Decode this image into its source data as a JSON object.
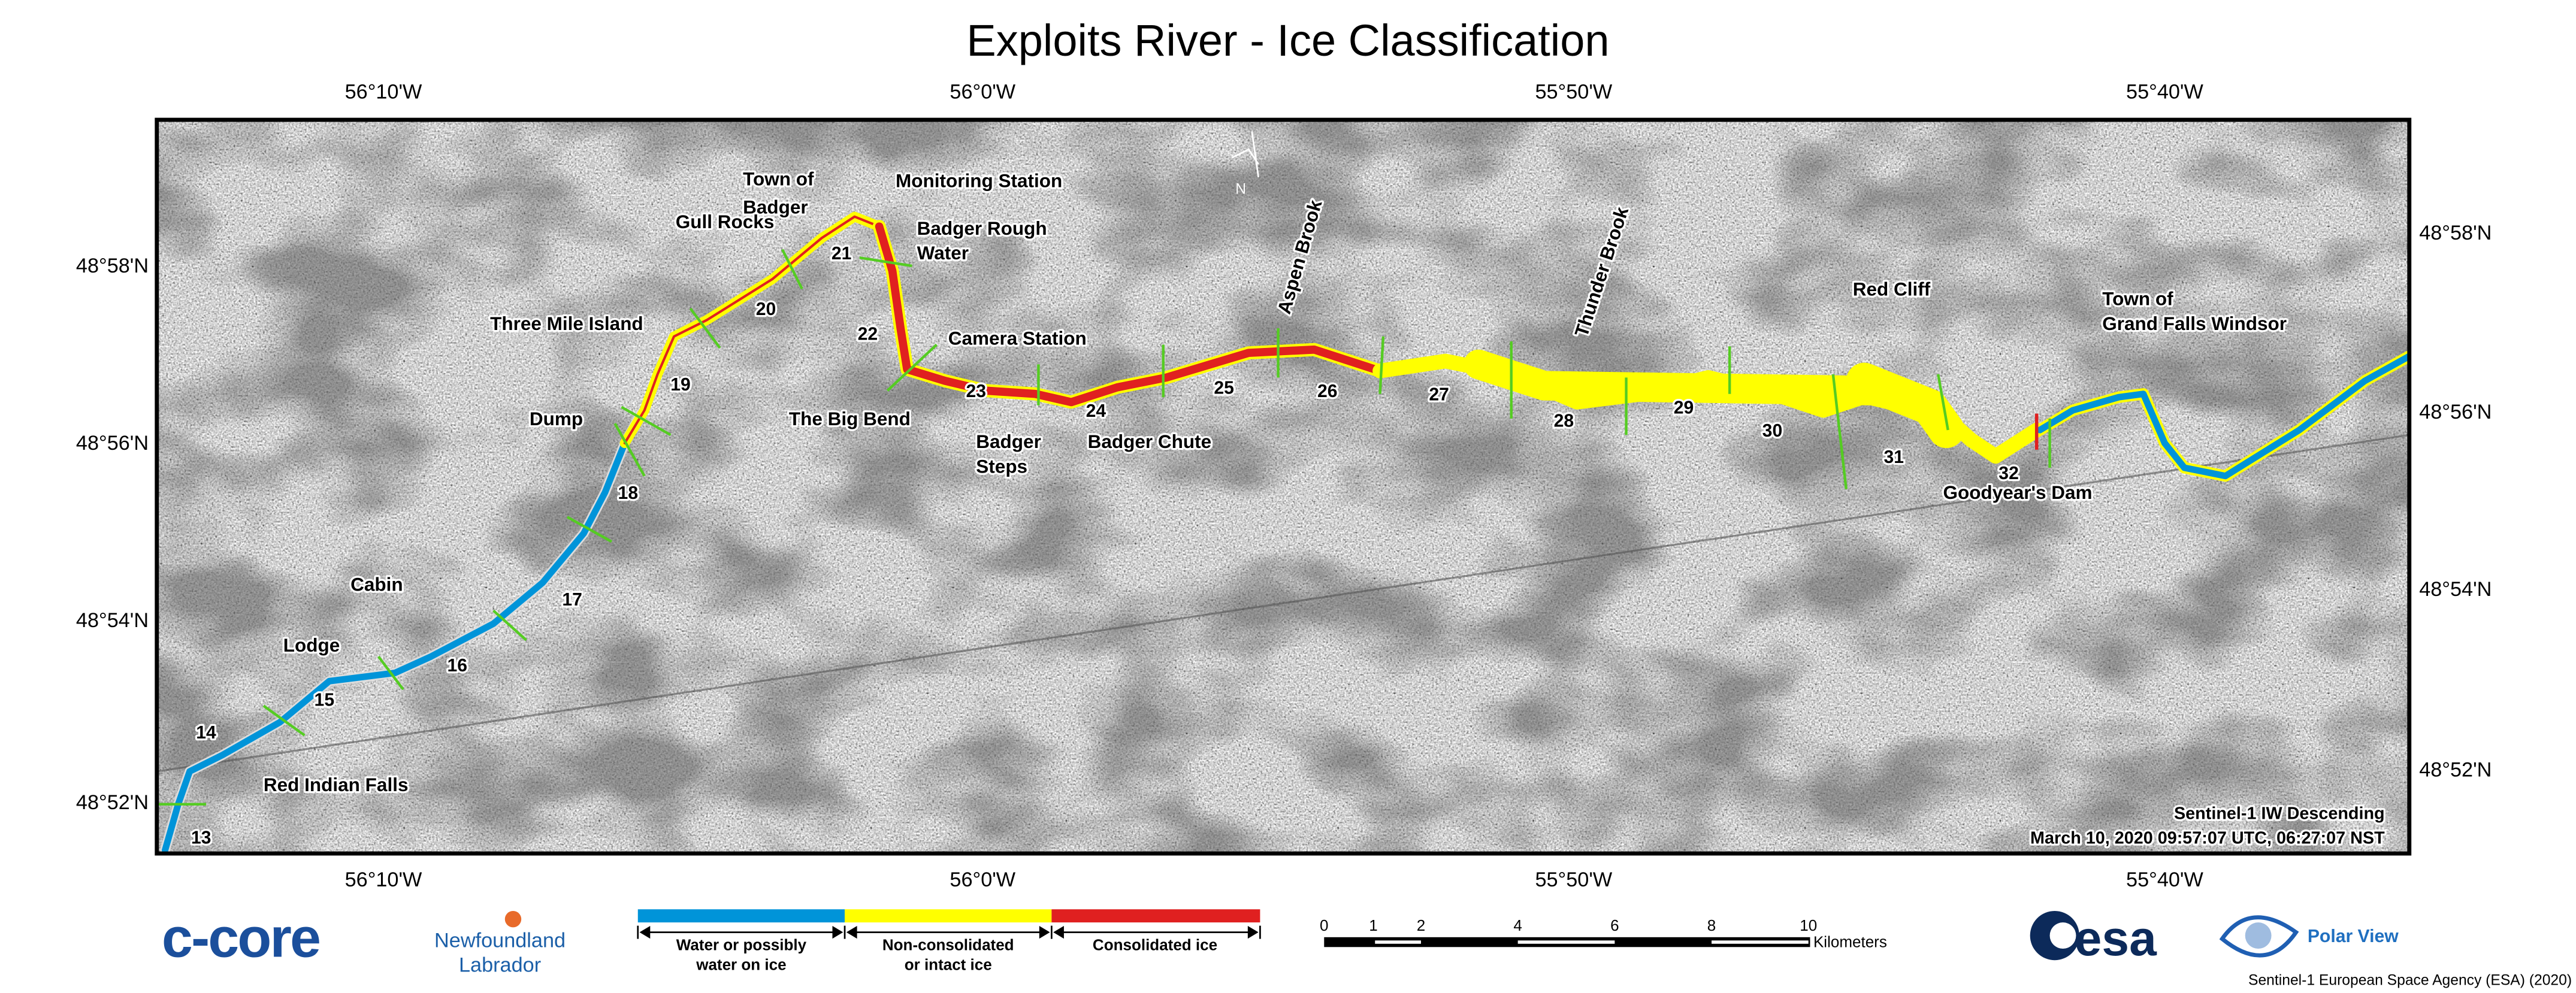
{
  "title": "Exploits River - Ice Classification",
  "lon_labels": [
    "56°10'W",
    "56°0'W",
    "55°50'W",
    "55°40'W"
  ],
  "lat_labels": [
    "48°58'N",
    "48°56'N",
    "48°54'N",
    "48°52'N"
  ],
  "north_arrow": "N",
  "places": {
    "town_of_badger": [
      "Town of",
      "Badger"
    ],
    "monitoring_station": "Monitoring Station",
    "gull_rocks": "Gull Rocks",
    "badger_rough_water": [
      "Badger Rough",
      "Water"
    ],
    "three_mile_island": "Three Mile Island",
    "camera_station": "Camera Station",
    "big_bend": "The Big Bend",
    "badger_steps": [
      "Badger",
      "Steps"
    ],
    "badger_chute": "Badger Chute",
    "dump": "Dump",
    "cabin": "Cabin",
    "lodge": "Lodge",
    "red_indian_falls": "Red Indian Falls",
    "aspen_brook": "Aspen Brook",
    "thunder_brook": "Thunder Brook",
    "red_cliff": "Red Cliff",
    "grand_falls": [
      "Town of",
      "Grand Falls Windsor"
    ],
    "goodyears_dam": "Goodyear's Dam"
  },
  "sections": [
    "13",
    "14",
    "15",
    "16",
    "17",
    "18",
    "19",
    "20",
    "21",
    "22",
    "23",
    "24",
    "25",
    "26",
    "27",
    "28",
    "29",
    "30",
    "31",
    "32"
  ],
  "acquisition": {
    "line1": "Sentinel-1 IW Descending",
    "line2": "March 10, 2020 09:57:07 UTC, 06:27:07 NST"
  },
  "legend": [
    {
      "color": "#0094d9",
      "label": [
        "Water or possibly",
        "water on ice"
      ]
    },
    {
      "color": "#ffff00",
      "label": [
        "Non-consolidated",
        "or intact ice"
      ]
    },
    {
      "color": "#e02020",
      "label": [
        "Consolidated ice"
      ]
    }
  ],
  "scalebar": {
    "ticks": [
      "0",
      "1",
      "2",
      "4",
      "6",
      "8",
      "10"
    ],
    "units": "Kilometers"
  },
  "logos": {
    "ccore": "c-core",
    "nl": [
      "Newfoundland",
      "Labrador"
    ],
    "esa": "esa",
    "polar_view": "Polar View"
  },
  "credit": "Sentinel-1 European Space Agency (ESA) (2020)",
  "colors": {
    "water": "#0094d9",
    "non_consolidated": "#ffff00",
    "consolidated": "#e02020",
    "section_line": "#55cc22"
  }
}
